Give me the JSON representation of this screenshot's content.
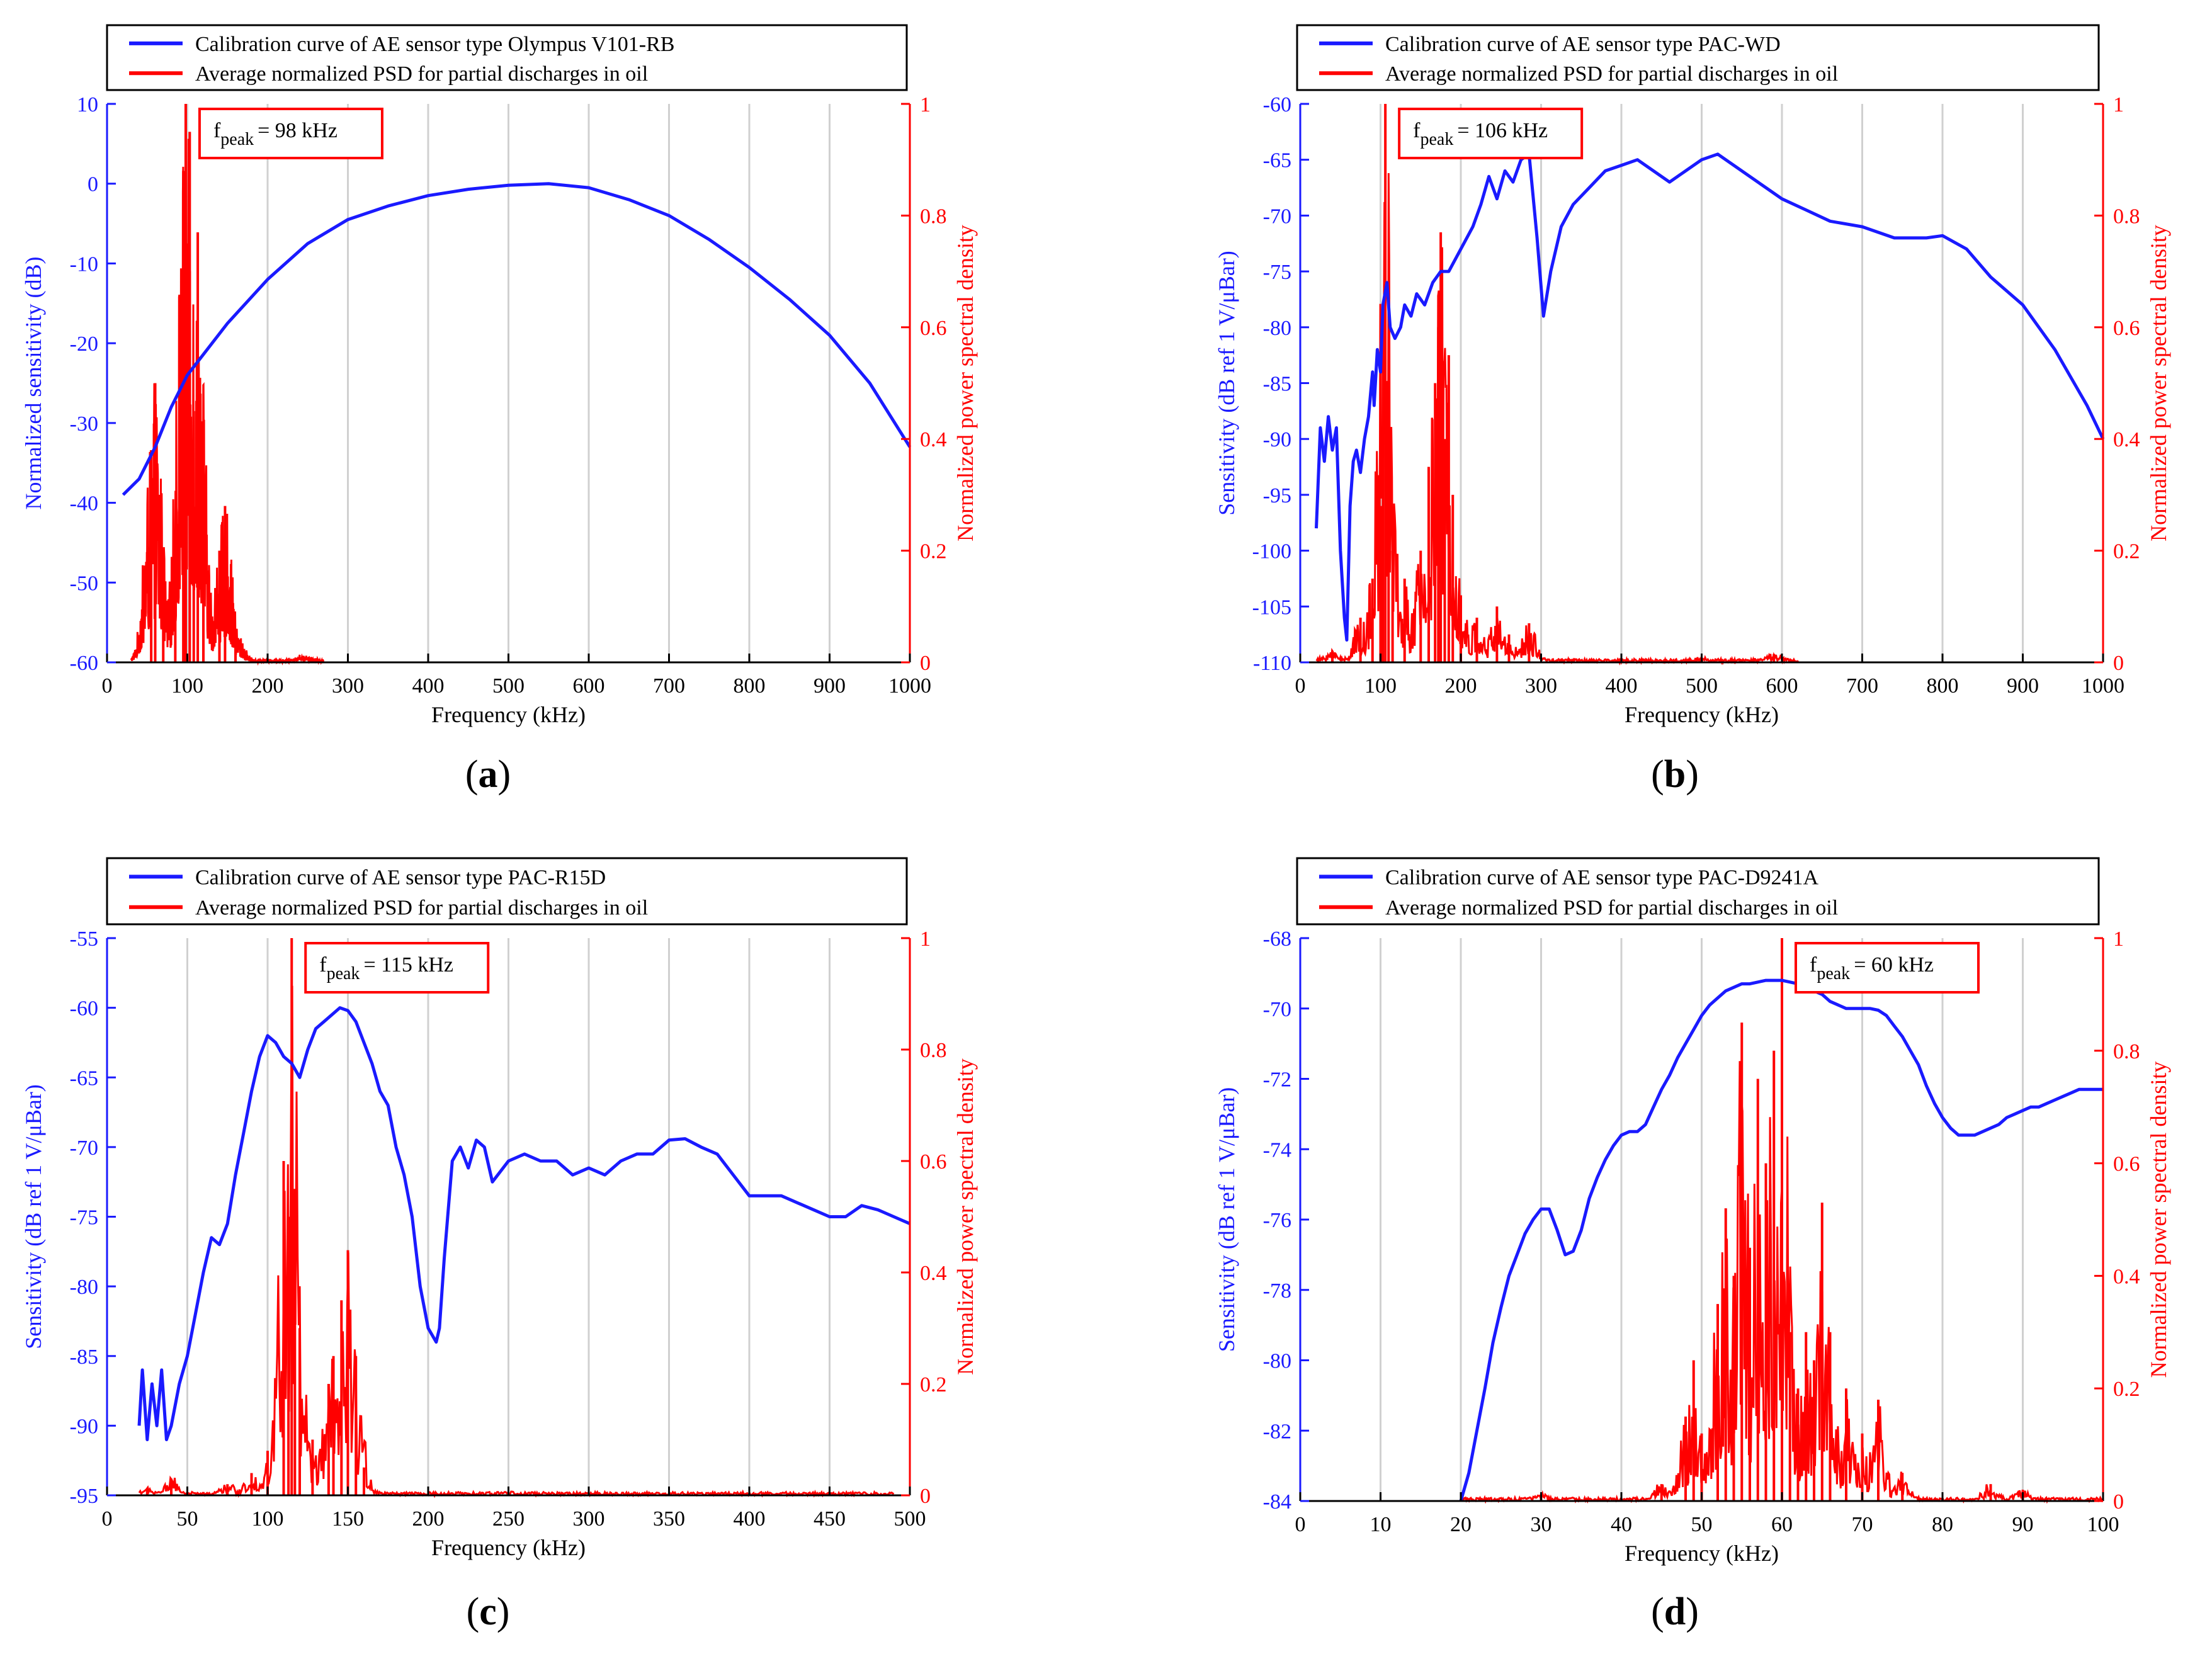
{
  "colors": {
    "blue": "#1a1aff",
    "red": "#ff0000",
    "grid": "#d0d0d0",
    "axis": "#000000"
  },
  "labels": {
    "legend_red": "Average normalized PSD for partial discharges in oil",
    "y_right": "Normalized power spectral density",
    "x_axis": "Frequency (kHz)"
  },
  "chart_data": [
    {
      "type": "line",
      "panel_label": "a",
      "legend_blue": "Calibration curve of AE sensor type Olympus V101-RB",
      "fpeak_sub": "peak",
      "fpeak_value": "= 98 kHz",
      "fpeak_x": 98,
      "xlabel": "Frequency (kHz)",
      "ylabel_left": "Normalized sensitivity (dB)",
      "ylabel_right": "Normalized power spectral density",
      "xlim": [
        0,
        1000
      ],
      "xticks": [
        0,
        100,
        200,
        300,
        400,
        500,
        600,
        700,
        800,
        900,
        1000
      ],
      "ylim_left": [
        -60,
        10
      ],
      "yticks_left": [
        10,
        0,
        -10,
        -20,
        -30,
        -40,
        -50,
        -60
      ],
      "ylim_right": [
        0,
        1
      ],
      "yticks_right": [
        1,
        0.8,
        0.6,
        0.4,
        0.2,
        0
      ],
      "sensitivity": {
        "x": [
          20,
          40,
          60,
          80,
          100,
          150,
          200,
          250,
          300,
          350,
          400,
          450,
          500,
          550,
          600,
          650,
          700,
          750,
          800,
          850,
          900,
          950,
          1000
        ],
        "y": [
          -39,
          -37,
          -33,
          -28,
          -24,
          -17.5,
          -12,
          -7.5,
          -4.5,
          -2.8,
          -1.5,
          -0.7,
          -0.2,
          0,
          -0.5,
          -2,
          -4,
          -7,
          -10.5,
          -14.5,
          -19,
          -25,
          -33
        ]
      },
      "psd_peaks": [
        [
          55,
          0.38
        ],
        [
          60,
          0.5
        ],
        [
          70,
          0.12
        ],
        [
          85,
          0.2
        ],
        [
          95,
          0.88
        ],
        [
          98,
          1.0
        ],
        [
          103,
          0.95
        ],
        [
          108,
          0.45
        ],
        [
          113,
          0.77
        ],
        [
          120,
          0.25
        ],
        [
          140,
          0.2
        ],
        [
          147,
          0.28
        ],
        [
          160,
          0.06
        ],
        [
          245,
          0.01
        ]
      ],
      "psd_range": [
        30,
        270
      ]
    },
    {
      "type": "line",
      "panel_label": "b",
      "legend_blue": "Calibration curve of AE sensor type PAC-WD",
      "fpeak_sub": "peak",
      "fpeak_value": "= 106 kHz",
      "fpeak_x": 106,
      "xlabel": "Frequency (kHz)",
      "ylabel_left": "Sensitivity (dB ref 1 V/μBar)",
      "ylabel_right": "Normalized power spectral density",
      "xlim": [
        0,
        1000
      ],
      "xticks": [
        0,
        100,
        200,
        300,
        400,
        500,
        600,
        700,
        800,
        900,
        1000
      ],
      "ylim_left": [
        -110,
        -60
      ],
      "yticks_left": [
        -60,
        -65,
        -70,
        -75,
        -80,
        -85,
        -90,
        -95,
        -100,
        -105,
        -110
      ],
      "ylim_right": [
        0,
        1
      ],
      "yticks_right": [
        1,
        0.8,
        0.6,
        0.4,
        0.2,
        0
      ],
      "sensitivity": {
        "x": [
          20,
          25,
          30,
          35,
          40,
          45,
          50,
          55,
          58,
          62,
          66,
          70,
          75,
          80,
          85,
          90,
          92,
          96,
          100,
          103,
          108,
          112,
          118,
          125,
          130,
          138,
          145,
          155,
          165,
          175,
          185,
          200,
          215,
          225,
          235,
          245,
          255,
          265,
          275,
          285,
          295,
          303,
          312,
          325,
          340,
          360,
          380,
          400,
          420,
          440,
          460,
          480,
          500,
          520,
          540,
          560,
          580,
          600,
          630,
          660,
          700,
          740,
          780,
          800,
          830,
          860,
          900,
          940,
          980,
          1000
        ],
        "y": [
          -98,
          -89,
          -92,
          -88,
          -91,
          -89,
          -100,
          -106,
          -108,
          -96,
          -92,
          -91,
          -93,
          -90,
          -88,
          -84,
          -87,
          -82,
          -84,
          -78,
          -76,
          -80,
          -81,
          -80,
          -78,
          -79,
          -77,
          -78,
          -76,
          -75,
          -75,
          -73,
          -71,
          -69,
          -66.5,
          -68.5,
          -66,
          -67,
          -65,
          -64.5,
          -72,
          -79,
          -75,
          -71,
          -69,
          -67.5,
          -66,
          -65.5,
          -65,
          -66,
          -67,
          -66,
          -65,
          -64.5,
          -65.5,
          -66.5,
          -67.5,
          -68.5,
          -69.5,
          -70.5,
          -71,
          -72,
          -72,
          -71.8,
          -73,
          -75.5,
          -78,
          -82,
          -87,
          -90
        ]
      },
      "psd_peaks": [
        [
          40,
          0.02
        ],
        [
          75,
          0.08
        ],
        [
          90,
          0.15
        ],
        [
          100,
          0.28
        ],
        [
          103,
          0.55
        ],
        [
          106,
          1.0
        ],
        [
          110,
          0.45
        ],
        [
          115,
          0.2
        ],
        [
          130,
          0.15
        ],
        [
          150,
          0.2
        ],
        [
          160,
          0.35
        ],
        [
          168,
          0.5
        ],
        [
          172,
          0.6
        ],
        [
          175,
          0.77
        ],
        [
          180,
          0.4
        ],
        [
          185,
          0.55
        ],
        [
          190,
          0.3
        ],
        [
          200,
          0.12
        ],
        [
          220,
          0.08
        ],
        [
          245,
          0.1
        ],
        [
          260,
          0.05
        ],
        [
          285,
          0.07
        ],
        [
          500,
          0.005
        ],
        [
          590,
          0.015
        ]
      ],
      "psd_range": [
        20,
        620
      ]
    },
    {
      "type": "line",
      "panel_label": "c",
      "legend_blue": "Calibration curve of AE sensor type PAC-R15D",
      "fpeak_sub": "peak",
      "fpeak_value": "= 115 kHz",
      "fpeak_x": 115,
      "xlabel": "Frequency (kHz)",
      "ylabel_left": "Sensitivity (dB ref 1 V/μBar)",
      "ylabel_right": "Normalized power spectral density",
      "xlim": [
        0,
        500
      ],
      "xticks": [
        0,
        50,
        100,
        150,
        200,
        250,
        300,
        350,
        400,
        450,
        500
      ],
      "ylim_left": [
        -95,
        -55
      ],
      "yticks_left": [
        -55,
        -60,
        -65,
        -70,
        -75,
        -80,
        -85,
        -90,
        -95
      ],
      "ylim_right": [
        0,
        1
      ],
      "yticks_right": [
        1,
        0.8,
        0.6,
        0.4,
        0.2,
        0
      ],
      "sensitivity": {
        "x": [
          20,
          22,
          25,
          28,
          31,
          34,
          37,
          40,
          45,
          50,
          55,
          60,
          65,
          70,
          75,
          80,
          85,
          90,
          95,
          100,
          105,
          110,
          115,
          120,
          125,
          130,
          135,
          140,
          145,
          150,
          155,
          160,
          165,
          170,
          175,
          180,
          185,
          190,
          195,
          200,
          205,
          207,
          210,
          215,
          220,
          225,
          230,
          235,
          240,
          250,
          260,
          270,
          280,
          290,
          300,
          310,
          320,
          330,
          340,
          350,
          360,
          370,
          380,
          390,
          400,
          410,
          420,
          430,
          440,
          450,
          460,
          470,
          480,
          490,
          500
        ],
        "y": [
          -90,
          -86,
          -91,
          -87,
          -90,
          -86,
          -91,
          -90,
          -87,
          -85,
          -82,
          -79,
          -76.5,
          -77,
          -75.5,
          -72,
          -69,
          -66,
          -63.5,
          -62,
          -62.5,
          -63.5,
          -64,
          -65,
          -63,
          -61.5,
          -61,
          -60.5,
          -60,
          -60.2,
          -61,
          -62.5,
          -64,
          -66,
          -67,
          -70,
          -72,
          -75,
          -80,
          -83,
          -84,
          -83,
          -78,
          -71,
          -70,
          -71.5,
          -69.5,
          -70,
          -72.5,
          -71,
          -70.5,
          -71,
          -71,
          -72,
          -71.5,
          -72,
          -71,
          -70.5,
          -70.5,
          -69.5,
          -69.4,
          -70,
          -70.5,
          -72,
          -73.5,
          -73.5,
          -73.5,
          -74,
          -74.5,
          -75,
          -75,
          -74.2,
          -74.5,
          -75,
          -75.5
        ]
      },
      "psd_peaks": [
        [
          25,
          0.01
        ],
        [
          40,
          0.03
        ],
        [
          75,
          0.02
        ],
        [
          90,
          0.04
        ],
        [
          100,
          0.08
        ],
        [
          110,
          0.6
        ],
        [
          113,
          0.5
        ],
        [
          115,
          1.0
        ],
        [
          117,
          0.55
        ],
        [
          120,
          0.3
        ],
        [
          128,
          0.1
        ],
        [
          138,
          0.2
        ],
        [
          141,
          0.25
        ],
        [
          146,
          0.35
        ],
        [
          150,
          0.44
        ],
        [
          155,
          0.25
        ],
        [
          160,
          0.05
        ],
        [
          250,
          0.005
        ]
      ],
      "psd_range": [
        20,
        490
      ]
    },
    {
      "type": "line",
      "panel_label": "d",
      "legend_blue": "Calibration curve of AE sensor type PAC-D9241A",
      "fpeak_sub": "peak",
      "fpeak_value": "= 60 kHz",
      "fpeak_x": 60,
      "xlabel": "Frequency (kHz)",
      "ylabel_left": "Sensitivity (dB ref 1 V/μBar)",
      "ylabel_right": "Normalized power spectral density",
      "xlim": [
        0,
        100
      ],
      "xticks": [
        0,
        10,
        20,
        30,
        40,
        50,
        60,
        70,
        80,
        90,
        100
      ],
      "ylim_left": [
        -84,
        -68
      ],
      "yticks_left": [
        -68,
        -70,
        -72,
        -74,
        -76,
        -78,
        -80,
        -82,
        -84
      ],
      "ylim_right": [
        0,
        1
      ],
      "yticks_right": [
        1,
        0.8,
        0.6,
        0.4,
        0.2,
        0
      ],
      "sensitivity": {
        "x": [
          20,
          21,
          22,
          23,
          24,
          25,
          26,
          27,
          28,
          29,
          30,
          31,
          32,
          33,
          34,
          35,
          36,
          37,
          38,
          39,
          40,
          41,
          42,
          43,
          44,
          45,
          46,
          47,
          48,
          49,
          50,
          51,
          52,
          53,
          54,
          55,
          56,
          57,
          58,
          59,
          60,
          61,
          62,
          63,
          64,
          65,
          66,
          67,
          68,
          69,
          70,
          71,
          72,
          73,
          74,
          75,
          76,
          77,
          78,
          79,
          80,
          81,
          82,
          83,
          84,
          85,
          86,
          87,
          88,
          89,
          90,
          91,
          92,
          93,
          94,
          95,
          96,
          97,
          98,
          99,
          100
        ],
        "y": [
          -84,
          -83.2,
          -82,
          -80.8,
          -79.5,
          -78.5,
          -77.6,
          -77,
          -76.4,
          -76,
          -75.7,
          -75.7,
          -76.3,
          -77,
          -76.9,
          -76.3,
          -75.4,
          -74.8,
          -74.3,
          -73.9,
          -73.6,
          -73.5,
          -73.5,
          -73.3,
          -72.8,
          -72.3,
          -71.9,
          -71.4,
          -71,
          -70.6,
          -70.2,
          -69.9,
          -69.7,
          -69.5,
          -69.4,
          -69.3,
          -69.3,
          -69.25,
          -69.2,
          -69.2,
          -69.2,
          -69.25,
          -69.3,
          -69.4,
          -69.5,
          -69.6,
          -69.8,
          -69.9,
          -70.0,
          -70.0,
          -70.0,
          -70.0,
          -70.05,
          -70.2,
          -70.5,
          -70.8,
          -71.2,
          -71.6,
          -72.2,
          -72.7,
          -73.1,
          -73.4,
          -73.6,
          -73.6,
          -73.6,
          -73.5,
          -73.4,
          -73.3,
          -73.1,
          -73.0,
          -72.9,
          -72.8,
          -72.8,
          -72.7,
          -72.6,
          -72.5,
          -72.4,
          -72.3,
          -72.3,
          -72.3,
          -72.3
        ]
      },
      "psd_peaks": [
        [
          30,
          0.01
        ],
        [
          45,
          0.03
        ],
        [
          48,
          0.15
        ],
        [
          49,
          0.25
        ],
        [
          50,
          0.12
        ],
        [
          52,
          0.35
        ],
        [
          53,
          0.52
        ],
        [
          54,
          0.4
        ],
        [
          55,
          0.85
        ],
        [
          56,
          0.45
        ],
        [
          57,
          0.75
        ],
        [
          58,
          0.6
        ],
        [
          59,
          0.8
        ],
        [
          60,
          1.0
        ],
        [
          61,
          0.3
        ],
        [
          62,
          0.2
        ],
        [
          63,
          0.3
        ],
        [
          64,
          0.25
        ],
        [
          65,
          0.53
        ],
        [
          66,
          0.3
        ],
        [
          68,
          0.2
        ],
        [
          70,
          0.12
        ],
        [
          72,
          0.18
        ],
        [
          75,
          0.05
        ],
        [
          86,
          0.03
        ],
        [
          90,
          0.02
        ]
      ],
      "psd_range": [
        20,
        100
      ]
    }
  ]
}
